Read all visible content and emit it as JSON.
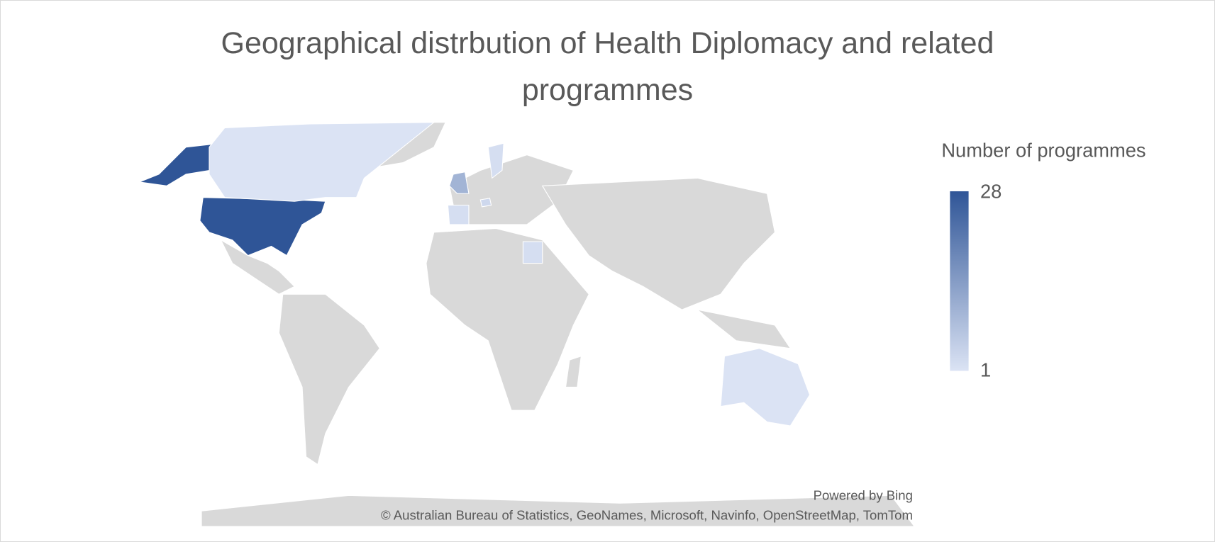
{
  "chart_data": {
    "type": "choropleth",
    "title": "Geographical distrbution of Health Diplomacy and related programmes",
    "legend_title": "Number of programmes",
    "scale": {
      "min": 1,
      "max": 28
    },
    "colorscale": [
      "#dbe3f4",
      "#2f5597"
    ],
    "values": [
      28,
      10,
      1,
      2,
      2,
      2,
      1,
      3
    ],
    "credits": [
      "Powered by Bing",
      "© Australian Bureau of Statistics, GeoNames, Microsoft, Navinfo, OpenStreetMap, TomTom"
    ]
  }
}
